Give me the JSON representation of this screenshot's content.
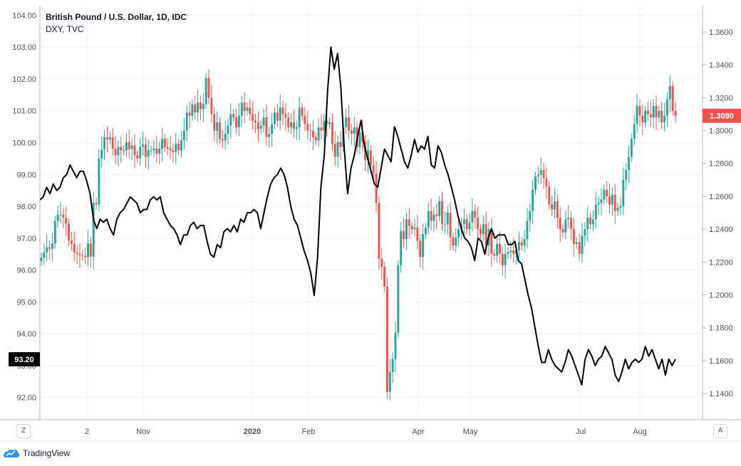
{
  "legend": {
    "main": "British Pound / U.S. Dollar, 1D, IDC",
    "overlay": "DXY, TVC"
  },
  "footer": {
    "brand": "TradingView"
  },
  "corner": {
    "left_button": "Z",
    "right_button": "A"
  },
  "colors": {
    "up": "#26a69a",
    "down": "#ef5350",
    "line": "#000000",
    "grid": "#eceff4",
    "price_label_main": "#ef5350",
    "price_label_overlay": "#000000"
  },
  "chart_data": {
    "type": "line",
    "title": "British Pound / U.S. Dollar, 1D, IDC",
    "x_ticks": [
      "2",
      "Nov",
      "2020",
      "Feb",
      "Apr",
      "May",
      "Jul",
      "Aug"
    ],
    "left_axis": {
      "series": "DXY, TVC",
      "ticks": [
        "104.00",
        "103.00",
        "102.00",
        "101.00",
        "100.00",
        "99.00",
        "98.00",
        "97.00",
        "96.00",
        "95.00",
        "94.00",
        "93.00",
        "92.00"
      ],
      "range": [
        91.3,
        104.3
      ],
      "current_value": "93.20"
    },
    "right_axis": {
      "series": "British Pound / U.S. Dollar",
      "ticks": [
        "1.3600",
        "1.3400",
        "1.3200",
        "1.3000",
        "1.2800",
        "1.2600",
        "1.2400",
        "1.2200",
        "1.2000",
        "1.1800",
        "1.1600",
        "1.1400"
      ],
      "range": [
        1.124,
        1.376
      ],
      "current_value": "1.3090"
    },
    "grid": true,
    "series": [
      {
        "name": "DXY, TVC",
        "kind": "line",
        "axis": "left",
        "values": [
          98.2,
          98.3,
          98.6,
          98.4,
          98.7,
          98.5,
          98.6,
          98.9,
          99.0,
          99.3,
          99.1,
          98.9,
          99.1,
          99.1,
          98.8,
          98.4,
          97.6,
          97.3,
          97.6,
          97.5,
          97.6,
          97.3,
          97.1,
          97.6,
          97.8,
          97.9,
          98.1,
          98.3,
          98.2,
          98.1,
          97.8,
          97.9,
          97.9,
          98.2,
          98.3,
          98.2,
          98.3,
          97.8,
          97.6,
          97.4,
          97.3,
          97.1,
          96.8,
          97.1,
          97.1,
          97.4,
          97.5,
          97.3,
          97.4,
          97.4,
          96.9,
          96.5,
          96.4,
          96.8,
          96.7,
          97.2,
          97.3,
          97.2,
          97.4,
          97.2,
          97.6,
          97.5,
          97.8,
          97.8,
          97.9,
          97.8,
          97.3,
          97.8,
          98.3,
          98.7,
          98.9,
          99.0,
          99.2,
          99.0,
          98.6,
          98.0,
          97.6,
          97.4,
          97.0,
          96.6,
          96.3,
          95.9,
          95.2,
          96.4,
          98.6,
          99.6,
          101.6,
          103.0,
          102.3,
          102.8,
          101.7,
          99.8,
          98.4,
          99.2,
          99.6,
          100.2,
          100.7,
          99.9,
          99.5,
          99.1,
          98.7,
          98.6,
          99.2,
          99.8,
          99.6,
          99.4,
          100.5,
          100.2,
          99.8,
          99.4,
          99.2,
          99.6,
          100.1,
          99.7,
          99.9,
          99.8,
          100.2,
          99.3,
          99.2,
          99.9,
          99.7,
          99.3,
          99.0,
          98.6,
          98.2,
          97.7,
          97.3,
          97.0,
          96.9,
          96.7,
          96.3,
          97.0,
          96.9,
          96.5,
          97.0,
          97.3,
          97.0,
          97.1,
          97.1,
          97.1,
          96.8,
          96.8,
          96.9,
          96.3,
          96.2,
          95.7,
          95.2,
          94.8,
          94.2,
          93.6,
          93.1,
          93.1,
          93.5,
          93.2,
          93.0,
          92.9,
          92.8,
          93.1,
          93.5,
          93.3,
          93.0,
          92.7,
          92.4,
          93.2,
          93.5,
          93.3,
          93.0,
          93.2,
          93.3,
          93.6,
          93.4,
          93.2,
          92.7,
          92.5,
          92.8,
          93.2,
          92.9,
          93.1,
          93.2,
          93.1,
          93.2,
          93.6,
          93.3,
          93.5,
          93.2,
          92.9,
          93.2,
          92.7,
          93.2,
          93.0,
          93.2
        ]
      },
      {
        "name": "British Pound / U.S. Dollar",
        "kind": "candlestick",
        "axis": "right",
        "close": [
          1.2226,
          1.226,
          1.229,
          1.228,
          1.2313,
          1.245,
          1.249,
          1.249,
          1.247,
          1.2434,
          1.233,
          1.231,
          1.2258,
          1.225,
          1.2241,
          1.2237,
          1.223,
          1.2313,
          1.2233,
          1.256,
          1.255,
          1.283,
          1.2884,
          1.296,
          1.2945,
          1.296,
          1.289,
          1.285,
          1.29,
          1.288,
          1.2881,
          1.293,
          1.2887,
          1.291,
          1.285,
          1.283,
          1.29,
          1.2915,
          1.284,
          1.288,
          1.288,
          1.289,
          1.286,
          1.289,
          1.295,
          1.29,
          1.289,
          1.288,
          1.287,
          1.292,
          1.288,
          1.294,
          1.3,
          1.311,
          1.309,
          1.316,
          1.311,
          1.317,
          1.313,
          1.316,
          1.332,
          1.32,
          1.31,
          1.3,
          1.305,
          1.295,
          1.294,
          1.298,
          1.303,
          1.31,
          1.308,
          1.302,
          1.309,
          1.317,
          1.312,
          1.314,
          1.31,
          1.306,
          1.305,
          1.301,
          1.303,
          1.308,
          1.296,
          1.298,
          1.304,
          1.311,
          1.306,
          1.314,
          1.31,
          1.308,
          1.302,
          1.305,
          1.301,
          1.302,
          1.314,
          1.309,
          1.304,
          1.3,
          1.3,
          1.296,
          1.294,
          1.302,
          1.3,
          1.306,
          1.304,
          1.305,
          1.292,
          1.284,
          1.293,
          1.29,
          1.302,
          1.308,
          1.3,
          1.298,
          1.302,
          1.29,
          1.299,
          1.293,
          1.282,
          1.288,
          1.279,
          1.274,
          1.256,
          1.222,
          1.217,
          1.205,
          1.141,
          1.153,
          1.161,
          1.177,
          1.218,
          1.239,
          1.234,
          1.246,
          1.242,
          1.24,
          1.241,
          1.233,
          1.223,
          1.237,
          1.241,
          1.251,
          1.245,
          1.249,
          1.248,
          1.257,
          1.243,
          1.243,
          1.25,
          1.235,
          1.23,
          1.235,
          1.24,
          1.243,
          1.246,
          1.24,
          1.244,
          1.251,
          1.247,
          1.24,
          1.237,
          1.243,
          1.23,
          1.24,
          1.225,
          1.224,
          1.231,
          1.225,
          1.218,
          1.225,
          1.226,
          1.227,
          1.225,
          1.227,
          1.232,
          1.23,
          1.234,
          1.245,
          1.251,
          1.264,
          1.272,
          1.273,
          1.276,
          1.271,
          1.266,
          1.255,
          1.252,
          1.257,
          1.247,
          1.24,
          1.238,
          1.246,
          1.247,
          1.24,
          1.231,
          1.232,
          1.225,
          1.236,
          1.24,
          1.247,
          1.243,
          1.246,
          1.255,
          1.256,
          1.258,
          1.264,
          1.26,
          1.255,
          1.261,
          1.251,
          1.253,
          1.254,
          1.27,
          1.276,
          1.284,
          1.295,
          1.304,
          1.315,
          1.309,
          1.305,
          1.312,
          1.31,
          1.308,
          1.315,
          1.308,
          1.312,
          1.305,
          1.309,
          1.319,
          1.327,
          1.312,
          1.309
        ]
      }
    ]
  }
}
